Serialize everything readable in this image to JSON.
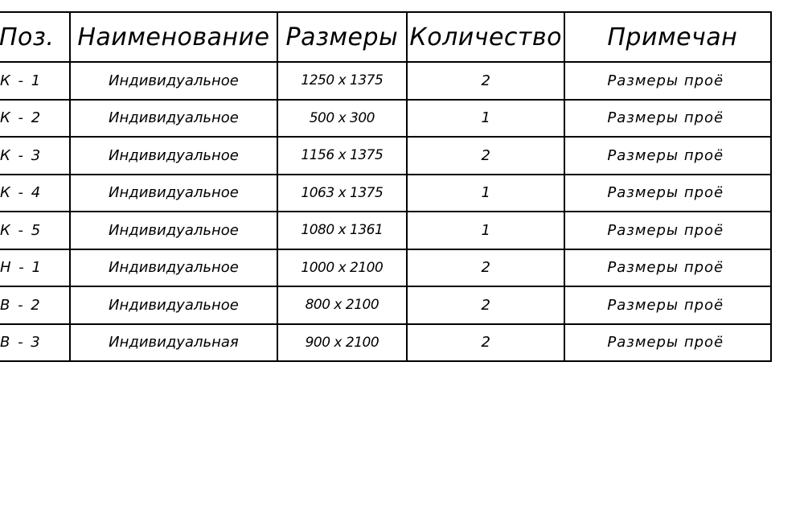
{
  "table": {
    "headers": [
      "Поз.",
      "Наименование",
      "Размеры",
      "Количество",
      "Примечан"
    ],
    "rows": [
      {
        "pos": "К - 1",
        "name": "Индивидуальное",
        "size": "1250 x 1375",
        "qty": "2",
        "note": "Размеры проё"
      },
      {
        "pos": "К - 2",
        "name": "Индивидуальное",
        "size": "500 x 300",
        "qty": "1",
        "note": "Размеры проё"
      },
      {
        "pos": "К - 3",
        "name": "Индивидуальное",
        "size": "1156 x 1375",
        "qty": "2",
        "note": "Размеры проё"
      },
      {
        "pos": "К - 4",
        "name": "Индивидуальное",
        "size": "1063 x 1375",
        "qty": "1",
        "note": "Размеры проё"
      },
      {
        "pos": "К - 5",
        "name": "Индивидуальное",
        "size": "1080 x 1361",
        "qty": "1",
        "note": "Размеры проё"
      },
      {
        "pos": "Н - 1",
        "name": "Индивидуальное",
        "size": "1000 x 2100",
        "qty": "2",
        "note": "Размеры проё"
      },
      {
        "pos": "В - 2",
        "name": "Индивидуальное",
        "size": "800 x 2100",
        "qty": "2",
        "note": "Размеры проё"
      },
      {
        "pos": "В - 3",
        "name": "Индивидуальная",
        "size": "900 x 2100",
        "qty": "2",
        "note": "Размеры проё"
      }
    ]
  }
}
